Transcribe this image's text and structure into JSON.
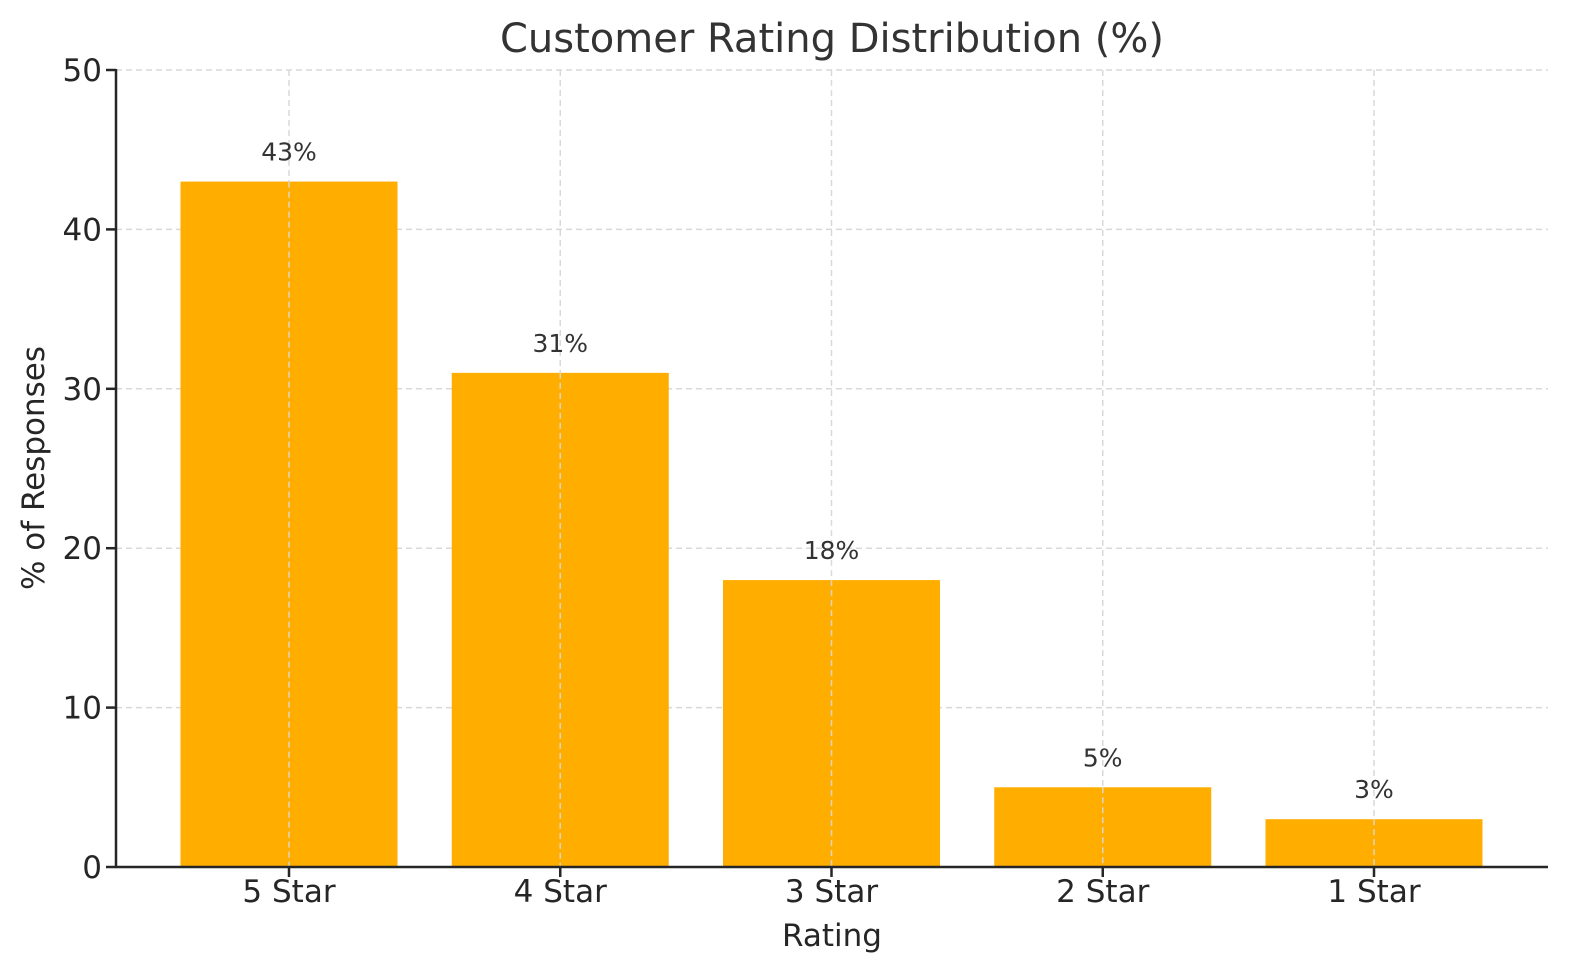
{
  "chart_data": {
    "type": "bar",
    "title": "Customer Rating Distribution (%)",
    "xlabel": "Rating",
    "ylabel": "% of Responses",
    "categories": [
      "5 Star",
      "4 Star",
      "3 Star",
      "2 Star",
      "1 Star"
    ],
    "values": [
      43,
      31,
      18,
      5,
      3
    ],
    "data_labels": [
      "43%",
      "31%",
      "18%",
      "5%",
      "3%"
    ],
    "ylim": [
      0,
      50
    ],
    "yticks": [
      0,
      10,
      20,
      30,
      40,
      50
    ],
    "grid": true,
    "legend": null,
    "bar_color": "#FFAE00"
  }
}
